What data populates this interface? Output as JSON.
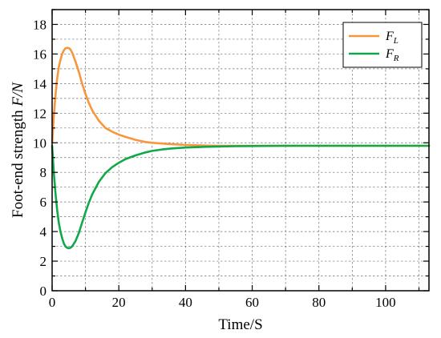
{
  "chart_data": {
    "type": "line",
    "xlabel": "Time/S",
    "ylabel": "Foot-end strength F/N",
    "ylabel_parts": {
      "text": "Foot-end strength ",
      "var": "F/N"
    },
    "xlim": [
      0,
      113
    ],
    "ylim": [
      0,
      19
    ],
    "xticks": [
      0,
      20,
      40,
      60,
      80,
      100
    ],
    "yticks": [
      0,
      2,
      4,
      6,
      8,
      10,
      12,
      14,
      16,
      18
    ],
    "x_gridlines": [
      0,
      10,
      20,
      30,
      40,
      50,
      60,
      70,
      80,
      90,
      100,
      110
    ],
    "y_gridlines": [
      0,
      1,
      2,
      3,
      4,
      5,
      6,
      7,
      8,
      9,
      10,
      11,
      12,
      13,
      14,
      15,
      16,
      17,
      18,
      19
    ],
    "grid": true,
    "legend_position": "top-right",
    "series": [
      {
        "name": "F_L",
        "label_main": "F",
        "label_sub": "L",
        "color": "#F7963C",
        "x": [
          0,
          0.5,
          1,
          1.5,
          2,
          2.5,
          3,
          3.5,
          4,
          4.5,
          5,
          5.5,
          6,
          7,
          8,
          9,
          10,
          11,
          12,
          14,
          16,
          18,
          20,
          22,
          25,
          28,
          30,
          33,
          36,
          40,
          45,
          50,
          55,
          60,
          70,
          80,
          90,
          100,
          113
        ],
        "y": [
          10.0,
          11.8,
          13.2,
          14.3,
          15.1,
          15.6,
          16.0,
          16.25,
          16.38,
          16.42,
          16.4,
          16.3,
          16.1,
          15.5,
          14.8,
          14.0,
          13.3,
          12.7,
          12.2,
          11.5,
          11.0,
          10.75,
          10.55,
          10.4,
          10.2,
          10.05,
          10.0,
          9.95,
          9.9,
          9.85,
          9.82,
          9.8,
          9.8,
          9.8,
          9.8,
          9.8,
          9.8,
          9.8,
          9.8
        ]
      },
      {
        "name": "F_R",
        "label_main": "F",
        "label_sub": "R",
        "color": "#12A84A",
        "x": [
          0,
          0.5,
          1,
          1.5,
          2,
          2.5,
          3,
          3.5,
          4,
          4.5,
          5,
          5.5,
          6,
          7,
          8,
          9,
          10,
          11,
          12,
          14,
          16,
          18,
          20,
          22,
          25,
          28,
          30,
          33,
          36,
          40,
          45,
          50,
          55,
          60,
          70,
          80,
          90,
          100,
          113
        ],
        "y": [
          9.8,
          8.0,
          6.6,
          5.5,
          4.6,
          4.0,
          3.55,
          3.2,
          3.0,
          2.9,
          2.88,
          2.9,
          3.0,
          3.35,
          3.9,
          4.6,
          5.3,
          5.95,
          6.5,
          7.35,
          7.95,
          8.35,
          8.65,
          8.9,
          9.15,
          9.35,
          9.45,
          9.55,
          9.62,
          9.68,
          9.72,
          9.75,
          9.77,
          9.78,
          9.8,
          9.8,
          9.8,
          9.8,
          9.8
        ]
      }
    ]
  }
}
